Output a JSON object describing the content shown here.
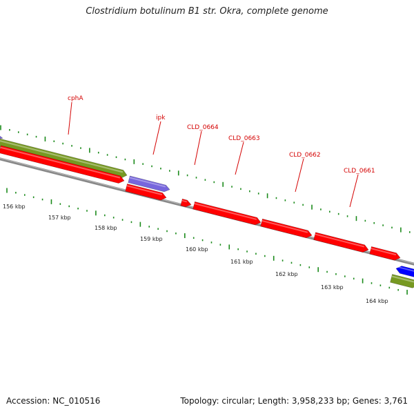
{
  "title": "Clostridium botulinum B1 str. Okra, complete genome",
  "footer": {
    "accession": "Accession: NC_010516",
    "summary": "Topology: circular; Length: 3,958,233 bp; Genes: 3,761"
  },
  "colors": {
    "cds": "#ff0000",
    "rrna": "#7766dd",
    "trna": "#0000ff",
    "misc": "#779922",
    "tick": "#1a8a1a",
    "backbone": "#888888",
    "label": "#d40000"
  },
  "scale_labels": [
    "156 kbp",
    "157 kbp",
    "158 kbp",
    "159 kbp",
    "160 kbp",
    "161 kbp",
    "162 kbp",
    "163 kbp",
    "164 kbp"
  ],
  "gene_labels": [
    "cphA",
    "ipk",
    "CLD_0664",
    "CLD_0663",
    "CLD_0662",
    "CLD_0661"
  ]
}
